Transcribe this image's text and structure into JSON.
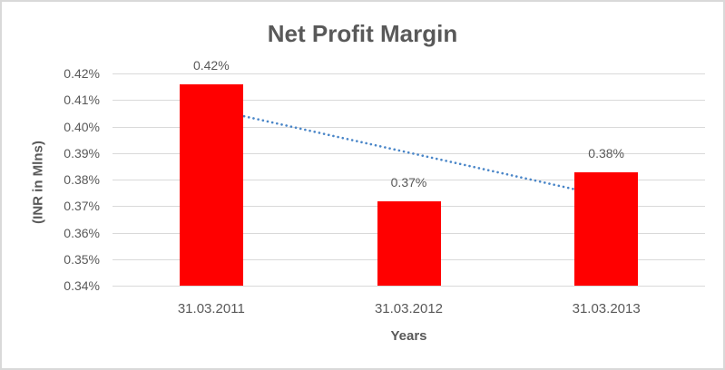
{
  "chart_data": {
    "type": "bar",
    "title": "Net Profit Margin",
    "xlabel": "Years",
    "ylabel": "(INR in Mlns)",
    "categories": [
      "31.03.2011",
      "31.03.2012",
      "31.03.2013"
    ],
    "values": [
      0.4158,
      0.3717,
      0.3829
    ],
    "data_labels": [
      "0.42%",
      "0.37%",
      "0.38%"
    ],
    "ylim": [
      0.34,
      0.42
    ],
    "y_ticks": [
      0.34,
      0.35,
      0.36,
      0.37,
      0.38,
      0.39,
      0.4,
      0.41,
      0.42
    ],
    "y_tick_labels": [
      "0.34%",
      "0.35%",
      "0.36%",
      "0.37%",
      "0.38%",
      "0.39%",
      "0.40%",
      "0.41%",
      "0.42%"
    ],
    "grid": true,
    "legend": "none",
    "trendline": {
      "type": "linear",
      "style": "dotted",
      "start_value": 0.4066,
      "end_value": 0.3737
    }
  },
  "colors": {
    "background": "#FFFFFF",
    "border": "#D9D9D9",
    "gridline": "#D9D9D9",
    "text": "#595959",
    "bar": "#FF0000",
    "trendline": "#4A86C8"
  }
}
